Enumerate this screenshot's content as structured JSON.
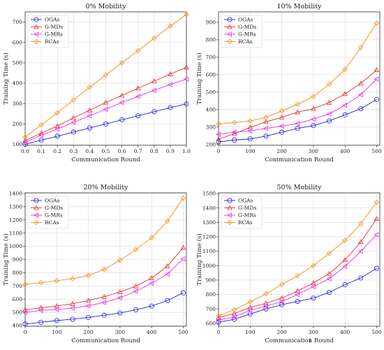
{
  "colors": {
    "OGAs": "#1f1fe0",
    "G-MDs": "#e8312f",
    "G-MRs": "#ee2ee8",
    "RCAs": "#f28e14"
  },
  "chart_data": [
    {
      "type": "line",
      "title": "0% Mobility",
      "xlabel": "Communication Round",
      "ylabel": "Training Time (s)",
      "xlim": [
        0.0,
        1.0
      ],
      "ylim": [
        95,
        750
      ],
      "xticks": [
        0.0,
        0.1,
        0.2,
        0.3,
        0.4,
        0.5,
        0.6,
        0.7,
        0.8,
        0.9,
        1.0
      ],
      "xtick_labels": [
        "0.0",
        "0.1",
        "0.2",
        "0.3",
        "0.4",
        "0.5",
        "0.6",
        "0.7",
        "0.8",
        "0.9",
        "1.0"
      ],
      "yticks": [
        100,
        200,
        300,
        400,
        500,
        600,
        700
      ],
      "ytick_labels": [
        "100",
        "200",
        "300",
        "400",
        "500",
        "600",
        "700"
      ],
      "grid": true,
      "legend_position": "top-left",
      "x": [
        0.0,
        0.1,
        0.2,
        0.3,
        0.4,
        0.5,
        0.6,
        0.7,
        0.8,
        0.9,
        1.0
      ],
      "series": [
        {
          "name": "OGAs",
          "values": [
            100,
            120,
            140,
            160,
            180,
            200,
            220,
            240,
            260,
            280,
            298
          ]
        },
        {
          "name": "G-MDs",
          "values": [
            118,
            155,
            190,
            230,
            267,
            305,
            340,
            375,
            410,
            445,
            478
          ]
        },
        {
          "name": "G-MRs",
          "values": [
            110,
            145,
            175,
            208,
            240,
            272,
            305,
            335,
            365,
            393,
            420
          ]
        },
        {
          "name": "RCAs",
          "values": [
            135,
            195,
            255,
            318,
            380,
            440,
            500,
            560,
            620,
            680,
            737
          ]
        }
      ]
    },
    {
      "type": "line",
      "title": "10% Mobility",
      "xlabel": "Communication Round",
      "ylabel": "Training Time (s)",
      "xlim": [
        0,
        510
      ],
      "ylim": [
        195,
        960
      ],
      "xticks": [
        0,
        100,
        200,
        300,
        400,
        500
      ],
      "xtick_labels": [
        "0",
        "100",
        "200",
        "300",
        "400",
        "500"
      ],
      "yticks": [
        200,
        300,
        400,
        500,
        600,
        700,
        800,
        900
      ],
      "ytick_labels": [
        "200",
        "300",
        "400",
        "500",
        "600",
        "700",
        "800",
        "900"
      ],
      "grid": true,
      "legend_position": "top-left",
      "x": [
        0,
        50,
        100,
        150,
        200,
        250,
        300,
        350,
        400,
        450,
        500
      ],
      "series": [
        {
          "name": "OGAs",
          "values": [
            215,
            225,
            232,
            248,
            270,
            292,
            308,
            335,
            370,
            405,
            458
          ]
        },
        {
          "name": "G-MDs",
          "values": [
            230,
            262,
            298,
            330,
            355,
            385,
            405,
            440,
            490,
            550,
            627
          ]
        },
        {
          "name": "G-MRs",
          "values": [
            258,
            270,
            278,
            292,
            305,
            320,
            345,
            375,
            425,
            485,
            575
          ]
        },
        {
          "name": "RCAs",
          "values": [
            318,
            325,
            335,
            355,
            392,
            430,
            475,
            545,
            630,
            755,
            895
          ]
        }
      ]
    },
    {
      "type": "line",
      "title": "20% Mobility",
      "xlabel": "Communication Round",
      "ylabel": "Training Time (s)",
      "xlim": [
        0,
        510
      ],
      "ylim": [
        395,
        1405
      ],
      "xticks": [
        0,
        100,
        200,
        300,
        400,
        500
      ],
      "xtick_labels": [
        "0",
        "100",
        "200",
        "300",
        "400",
        "500"
      ],
      "yticks": [
        400,
        500,
        600,
        700,
        800,
        900,
        1000,
        1100,
        1200,
        1300,
        1400
      ],
      "ytick_labels": [
        "400",
        "500",
        "600",
        "700",
        "800",
        "900",
        "1000",
        "1100",
        "1200",
        "1300",
        "1400"
      ],
      "grid": true,
      "legend_position": "top-left",
      "x": [
        0,
        50,
        100,
        150,
        200,
        250,
        300,
        350,
        400,
        450,
        500
      ],
      "series": [
        {
          "name": "OGAs",
          "values": [
            412,
            425,
            438,
            448,
            462,
            478,
            495,
            520,
            548,
            590,
            648
          ]
        },
        {
          "name": "G-MDs",
          "values": [
            520,
            535,
            548,
            565,
            590,
            618,
            655,
            698,
            760,
            850,
            990
          ]
        },
        {
          "name": "G-MRs",
          "values": [
            500,
            515,
            522,
            532,
            550,
            575,
            610,
            660,
            720,
            790,
            905
          ]
        },
        {
          "name": "RCAs",
          "values": [
            712,
            725,
            740,
            755,
            780,
            825,
            895,
            975,
            1065,
            1190,
            1365
          ]
        }
      ]
    },
    {
      "type": "line",
      "title": "50% Mobility",
      "xlabel": "Communication Round",
      "ylabel": "Training Time (s)",
      "xlim": [
        0,
        510
      ],
      "ylim": [
        580,
        1505
      ],
      "xticks": [
        0,
        100,
        200,
        300,
        400,
        500
      ],
      "xtick_labels": [
        "0",
        "100",
        "200",
        "300",
        "400",
        "500"
      ],
      "yticks": [
        600,
        700,
        800,
        900,
        1000,
        1100,
        1200,
        1300,
        1400,
        1500
      ],
      "ytick_labels": [
        "600",
        "700",
        "800",
        "900",
        "1000",
        "1100",
        "1200",
        "1300",
        "1400",
        "1500"
      ],
      "grid": true,
      "legend_position": "top-left",
      "x": [
        0,
        50,
        100,
        150,
        200,
        250,
        300,
        350,
        400,
        450,
        500
      ],
      "series": [
        {
          "name": "OGAs",
          "values": [
            608,
            628,
            665,
            700,
            730,
            752,
            775,
            815,
            868,
            915,
            982
          ]
        },
        {
          "name": "G-MDs",
          "values": [
            640,
            668,
            710,
            740,
            775,
            825,
            880,
            945,
            1040,
            1165,
            1325
          ]
        },
        {
          "name": "G-MRs",
          "values": [
            622,
            645,
            690,
            720,
            750,
            800,
            855,
            910,
            995,
            1100,
            1215
          ]
        },
        {
          "name": "RCAs",
          "values": [
            652,
            695,
            748,
            805,
            870,
            930,
            1000,
            1085,
            1175,
            1290,
            1440
          ]
        }
      ]
    }
  ],
  "footer_mark": "1"
}
